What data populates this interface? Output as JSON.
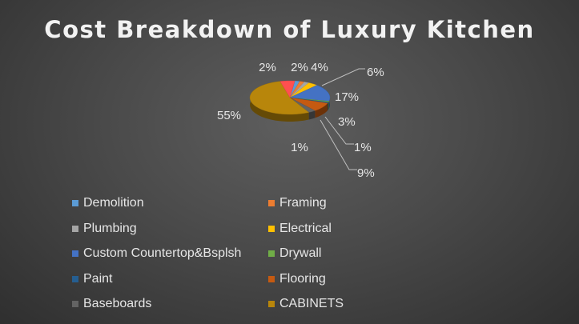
{
  "chart_data": {
    "type": "pie",
    "title": "Cost Breakdown of Luxury Kitchen",
    "legend_position": "bottom",
    "slices": [
      {
        "name": "Demolition",
        "value": 2,
        "label": "2%",
        "color": "#5b9bd5"
      },
      {
        "name": "Framing",
        "value": 2,
        "label": "2%",
        "color": "#ed7d31"
      },
      {
        "name": "Plumbing",
        "value": 2,
        "label": "",
        "color": "#a5a5a5"
      },
      {
        "name": "Electrical",
        "value": 4,
        "label": "4%",
        "color": "#ffc000"
      },
      {
        "name": "Custom Countertop&Bsplsh",
        "value": 17,
        "label": "17%",
        "color": "#4472c4"
      },
      {
        "name": "Drywall",
        "value": 1,
        "label": "1%",
        "color": "#70ad47"
      },
      {
        "name": "Paint",
        "value": 1,
        "label": "1%",
        "color": "#255e91"
      },
      {
        "name": "Flooring",
        "value": 9,
        "label": "9%",
        "color": "#c55a11"
      },
      {
        "name": "Baseboards",
        "value": 3,
        "label": "3%",
        "color": "#636363"
      },
      {
        "name": "CABINETS",
        "value": 55,
        "label": "55%",
        "color": "#b8860b"
      },
      {
        "name": "",
        "value": 6,
        "label": "6%",
        "color": "#ff5050"
      }
    ]
  }
}
